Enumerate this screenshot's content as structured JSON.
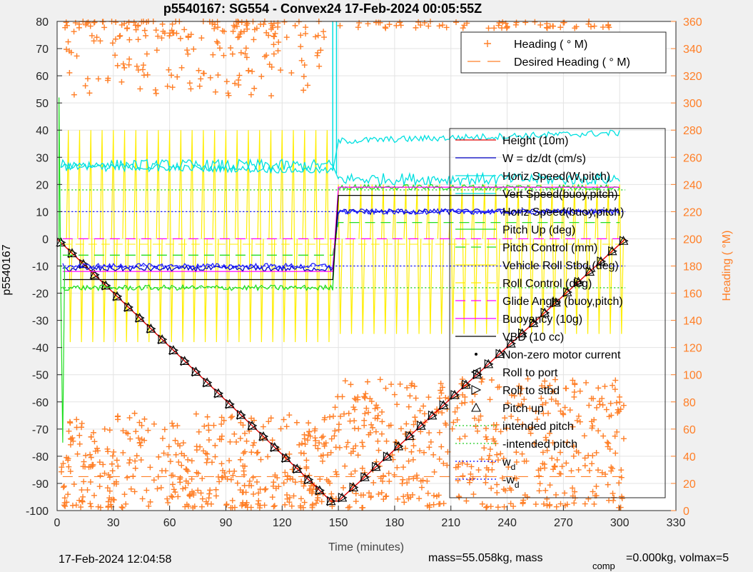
{
  "chart_data": {
    "type": "line",
    "title": "p5540167: SG554 - Convex24 17-Feb-2024 00:05:55Z",
    "xlabel": "Time (minutes)",
    "ylabel": "p5540167",
    "y2label": "Heading (  °M)",
    "xlim": [
      0,
      330
    ],
    "ylim": [
      -100,
      80
    ],
    "y2lim": [
      0,
      360
    ],
    "xticks": [
      0,
      30,
      60,
      90,
      120,
      150,
      180,
      210,
      240,
      270,
      300,
      330
    ],
    "yticks": [
      -100,
      -90,
      -80,
      -70,
      -60,
      -50,
      -40,
      -30,
      -20,
      -10,
      0,
      10,
      20,
      30,
      40,
      50,
      60,
      70,
      80
    ],
    "y2ticks": [
      0,
      20,
      40,
      60,
      80,
      100,
      120,
      140,
      160,
      180,
      200,
      220,
      240,
      260,
      280,
      300,
      320,
      340,
      360
    ],
    "grid": true,
    "legend_heading": {
      "placement": "top-right",
      "entries": [
        {
          "label": "Heading (  ° M)",
          "color": "#ff7f27",
          "style": "plus"
        },
        {
          "label": "Desired Heading (    ° M)",
          "color": "#ff7f27",
          "style": "dash"
        }
      ]
    },
    "legend_main": {
      "placement": "right",
      "entries": [
        {
          "label": "Height (10m)",
          "color": "#e00000",
          "style": "line"
        },
        {
          "label": "W = dz/dt (cm/s)",
          "color": "#0000c8",
          "style": "line"
        },
        {
          "label": "Horiz Speed(W,pitch)",
          "color": "#00e0e0",
          "style": "line"
        },
        {
          "label": "Vert Speed(buoy,pitch)",
          "color": "#00e0e0",
          "style": "line"
        },
        {
          "label": "Horiz Speed(buoy,pitch)",
          "color": "#2020ff",
          "style": "line"
        },
        {
          "label": "Pitch Up (deg)",
          "color": "#22dd22",
          "style": "line"
        },
        {
          "label": "Pitch Control (mm)",
          "color": "#22dd22",
          "style": "dash"
        },
        {
          "label": "Vehicle Roll Stbd (deg)",
          "color": "#ffee00",
          "style": "line"
        },
        {
          "label": "Roll Control (deg)",
          "color": "#ffee00",
          "style": "dash"
        },
        {
          "label": "Glide Angle (buoy,pitch)",
          "color": "#ff00ff",
          "style": "dash"
        },
        {
          "label": "Buoyancy (10g)",
          "color": "#ff00ff",
          "style": "line"
        },
        {
          "label": "VBD (10 cc)",
          "color": "#000000",
          "style": "line"
        },
        {
          "label": "Non-zero motor current",
          "color": "#000000",
          "style": "dot"
        },
        {
          "label": "Roll to port",
          "color": "#000000",
          "style": "tri-left"
        },
        {
          "label": "Roll to stbd",
          "color": "#000000",
          "style": "tri-right"
        },
        {
          "label": "Pitch up",
          "color": "#000000",
          "style": "tri-up"
        },
        {
          "label": "intended pitch",
          "color": "#22cc22",
          "style": "dotted"
        },
        {
          "label": "-intended pitch",
          "color": "#22cc22",
          "style": "dotted"
        },
        {
          "label": "w",
          "sub": "d",
          "color": "#0000ff",
          "style": "dotted"
        },
        {
          "label": "-w",
          "sub": "d",
          "color": "#0000ff",
          "style": "dotted"
        }
      ]
    },
    "series": [
      {
        "name": "Height (10m)",
        "color": "#e00000",
        "x": [
          0,
          146,
          150,
          300,
          303
        ],
        "y": [
          0,
          -96.5,
          -96.5,
          -2,
          0
        ]
      },
      {
        "name": "W = dz/dt (cm/s)",
        "color": "#0000c8",
        "x": [
          3,
          147,
          150,
          300
        ],
        "y": [
          -11,
          -11,
          10,
          10
        ]
      },
      {
        "name": "Horiz Speed(W,pitch)",
        "color": "#00e0e0",
        "x": [
          2,
          147,
          150,
          300
        ],
        "y": [
          27,
          27,
          22,
          22
        ]
      },
      {
        "name": "Vert Speed(buoy,pitch)",
        "color": "#00e0e0",
        "x": [
          2,
          147,
          150,
          300
        ],
        "y": [
          27,
          25,
          36,
          39
        ]
      },
      {
        "name": "Horiz Speed(buoy,pitch)",
        "color": "#2020ff",
        "x": [
          3,
          147,
          150,
          300
        ],
        "y": [
          -10,
          -10,
          10,
          10
        ]
      },
      {
        "name": "Pitch Up (deg)",
        "color": "#22dd22",
        "x": [
          3,
          147,
          150,
          300
        ],
        "y": [
          -18,
          -18,
          19,
          19
        ]
      },
      {
        "name": "Pitch Control (mm)",
        "color": "#22dd22",
        "x": [
          3,
          147,
          150,
          300
        ],
        "y": [
          -6,
          -6,
          6,
          6
        ]
      },
      {
        "name": "Glide Angle (buoy,pitch)",
        "color": "#ff00ff",
        "x": [
          3,
          147,
          150,
          300
        ],
        "y": [
          0,
          0,
          0,
          0
        ]
      },
      {
        "name": "Buoyancy (10g)",
        "color": "#ff00ff",
        "x": [
          3,
          147,
          150,
          300
        ],
        "y": [
          -12,
          -12,
          19,
          19
        ]
      },
      {
        "name": "VBD (10 cc)",
        "color": "#000000",
        "x": [
          3,
          147,
          150,
          300
        ],
        "y": [
          -15,
          -15,
          16,
          16
        ]
      }
    ],
    "reference_lines": [
      {
        "name": "intended pitch",
        "y": 18,
        "color": "#22cc22"
      },
      {
        "name": "-intended pitch",
        "y": -18,
        "color": "#22cc22"
      },
      {
        "name": "w_d",
        "y": 10,
        "color": "#0000ff"
      },
      {
        "name": "-w_d",
        "y": -10,
        "color": "#0000ff"
      }
    ],
    "heading_desired_y2": 25,
    "footer_left": "17-Feb-2024 12:04:58",
    "footer_mass": "mass=55.058kg, mass",
    "footer_comp": "comp",
    "footer_rest": "=0.000kg, volmax=5"
  }
}
